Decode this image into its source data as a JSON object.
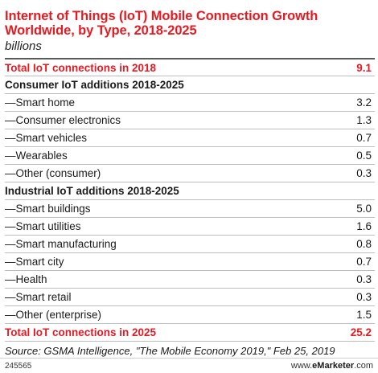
{
  "title": "Internet of Things (IoT) Mobile Connection Growth Worldwide, by Type, 2018-2025",
  "subtitle": "billions",
  "chart_data": {
    "type": "table",
    "title": "Internet of Things (IoT) Mobile Connection Growth Worldwide, by Type, 2018-2025",
    "subtitle": "billions",
    "total_2018": {
      "label": "Total IoT connections in 2018",
      "value": "9.1"
    },
    "sections": [
      {
        "header": "Consumer IoT additions 2018-2025",
        "rows": [
          {
            "label": "—Smart home",
            "value": "3.2"
          },
          {
            "label": "—Consumer electronics",
            "value": "1.3"
          },
          {
            "label": "—Smart vehicles",
            "value": "0.7"
          },
          {
            "label": "—Wearables",
            "value": "0.5"
          },
          {
            "label": "—Other (consumer)",
            "value": "0.3"
          }
        ]
      },
      {
        "header": "Industrial IoT additions 2018-2025",
        "rows": [
          {
            "label": "—Smart buildings",
            "value": "5.0"
          },
          {
            "label": "—Smart utilities",
            "value": "1.6"
          },
          {
            "label": "—Smart manufacturing",
            "value": "0.8"
          },
          {
            "label": "—Smart city",
            "value": "0.7"
          },
          {
            "label": "—Health",
            "value": "0.3"
          },
          {
            "label": "—Smart retail",
            "value": "0.3"
          },
          {
            "label": "—Other (enterprise)",
            "value": "1.5"
          }
        ]
      }
    ],
    "total_2025": {
      "label": "Total IoT connections in 2025",
      "value": "25.2"
    }
  },
  "source": "Source: GSMA Intelligence, \"The Mobile Economy 2019,\" Feb 25, 2019",
  "footer": {
    "chart_id": "245565",
    "brand_prefix": "www.",
    "brand_name": "eMarketer",
    "brand_suffix": ".com"
  },
  "colors": {
    "accent": "#e31b23",
    "text": "#1a1a1a",
    "rule": "#bdbdbd"
  }
}
